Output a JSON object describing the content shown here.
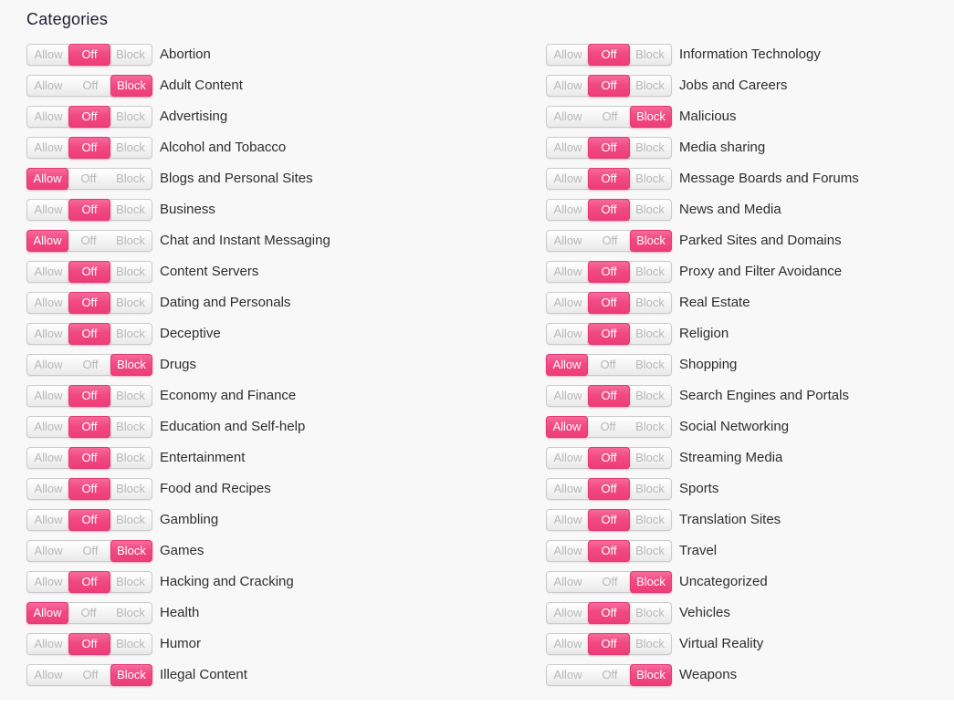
{
  "title": "Categories",
  "toggle_labels": {
    "allow": "Allow",
    "off": "Off",
    "block": "Block"
  },
  "colors": {
    "accent_pink": "#EE3C78",
    "inactive_toggle_text": "#B8B8B8",
    "label_text": "#2D2D2D",
    "background": "#F8F8F9"
  },
  "columns": [
    {
      "items": [
        {
          "label": "Abortion",
          "state": "off"
        },
        {
          "label": "Adult Content",
          "state": "block"
        },
        {
          "label": "Advertising",
          "state": "off"
        },
        {
          "label": "Alcohol and Tobacco",
          "state": "off"
        },
        {
          "label": "Blogs and Personal Sites",
          "state": "allow"
        },
        {
          "label": "Business",
          "state": "off"
        },
        {
          "label": "Chat and Instant Messaging",
          "state": "allow"
        },
        {
          "label": "Content Servers",
          "state": "off"
        },
        {
          "label": "Dating and Personals",
          "state": "off"
        },
        {
          "label": "Deceptive",
          "state": "off"
        },
        {
          "label": "Drugs",
          "state": "block"
        },
        {
          "label": "Economy and Finance",
          "state": "off"
        },
        {
          "label": "Education and Self-help",
          "state": "off"
        },
        {
          "label": "Entertainment",
          "state": "off"
        },
        {
          "label": "Food and Recipes",
          "state": "off"
        },
        {
          "label": "Gambling",
          "state": "off"
        },
        {
          "label": "Games",
          "state": "block"
        },
        {
          "label": "Hacking and Cracking",
          "state": "off"
        },
        {
          "label": "Health",
          "state": "allow"
        },
        {
          "label": "Humor",
          "state": "off"
        },
        {
          "label": "Illegal Content",
          "state": "block"
        }
      ]
    },
    {
      "items": [
        {
          "label": "Information Technology",
          "state": "off"
        },
        {
          "label": "Jobs and Careers",
          "state": "off"
        },
        {
          "label": "Malicious",
          "state": "block"
        },
        {
          "label": "Media sharing",
          "state": "off"
        },
        {
          "label": "Message Boards and Forums",
          "state": "off"
        },
        {
          "label": "News and Media",
          "state": "off"
        },
        {
          "label": "Parked Sites and Domains",
          "state": "block"
        },
        {
          "label": "Proxy and Filter Avoidance",
          "state": "off"
        },
        {
          "label": "Real Estate",
          "state": "off"
        },
        {
          "label": "Religion",
          "state": "off"
        },
        {
          "label": "Shopping",
          "state": "allow"
        },
        {
          "label": "Search Engines and Portals",
          "state": "off"
        },
        {
          "label": "Social Networking",
          "state": "allow"
        },
        {
          "label": "Streaming Media",
          "state": "off"
        },
        {
          "label": "Sports",
          "state": "off"
        },
        {
          "label": "Translation Sites",
          "state": "off"
        },
        {
          "label": "Travel",
          "state": "off"
        },
        {
          "label": "Uncategorized",
          "state": "block"
        },
        {
          "label": "Vehicles",
          "state": "off"
        },
        {
          "label": "Virtual Reality",
          "state": "off"
        },
        {
          "label": "Weapons",
          "state": "block"
        }
      ]
    }
  ]
}
